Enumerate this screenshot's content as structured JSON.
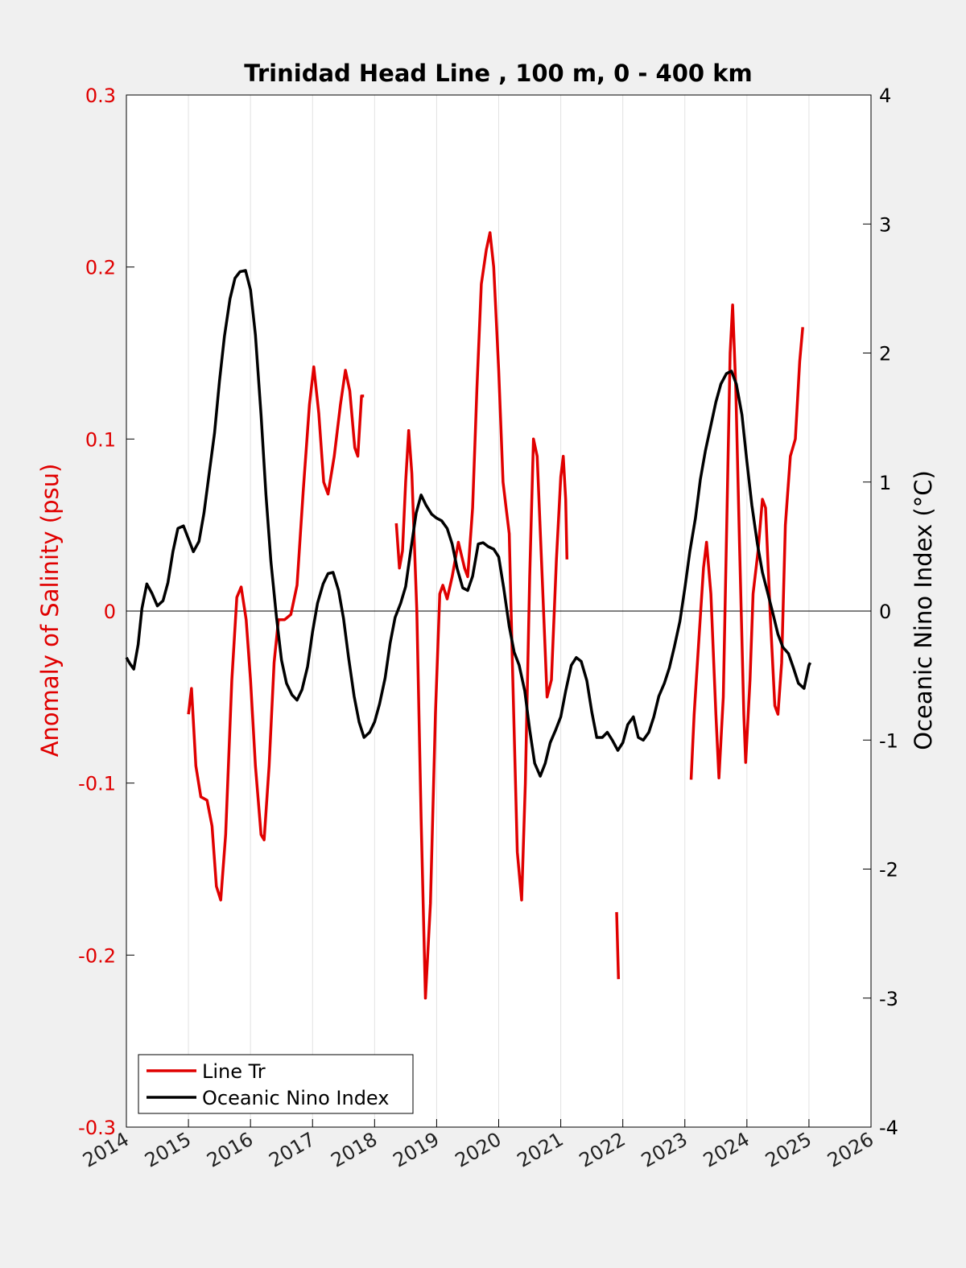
{
  "chart_data": {
    "type": "line",
    "title": "Trinidad Head Line , 100 m, 0 - 400 km",
    "ylabel_left": "Anomaly of Salinity (psu)",
    "ylabel_right": "Oceanic Nino Index (°C)",
    "xlim": [
      2014,
      2026
    ],
    "ylim_left": [
      -0.3,
      0.3
    ],
    "ylim_right": [
      -4,
      4
    ],
    "x_ticks": [
      "2014",
      "2015",
      "2016",
      "2017",
      "2018",
      "2019",
      "2020",
      "2021",
      "2022",
      "2023",
      "2024",
      "2025",
      "2026"
    ],
    "y_ticks_left": [
      "0.3",
      "0.2",
      "0.1",
      "0",
      "-0.1",
      "-0.2",
      "-0.3"
    ],
    "y_ticks_right": [
      "4",
      "3",
      "2",
      "1",
      "0",
      "-1",
      "-2",
      "-3",
      "-4"
    ],
    "grid": "vertical",
    "legend_position": "bottom-left",
    "colors": {
      "line_tr": "#e00000",
      "oni": "#000000",
      "zero_line": "#000000",
      "grid": "#e2e2e2"
    },
    "series": [
      {
        "name": "Line Tr",
        "axis": "left",
        "color": "#e00000",
        "segments": [
          [
            [
              2015.0,
              -0.06
            ],
            [
              2015.05,
              -0.045
            ],
            [
              2015.12,
              -0.09
            ],
            [
              2015.2,
              -0.108
            ],
            [
              2015.3,
              -0.11
            ],
            [
              2015.38,
              -0.125
            ],
            [
              2015.45,
              -0.16
            ],
            [
              2015.52,
              -0.168
            ],
            [
              2015.6,
              -0.13
            ],
            [
              2015.7,
              -0.04
            ],
            [
              2015.78,
              0.008
            ],
            [
              2015.85,
              0.014
            ],
            [
              2015.93,
              -0.005
            ],
            [
              2016.0,
              -0.04
            ],
            [
              2016.08,
              -0.09
            ],
            [
              2016.17,
              -0.13
            ],
            [
              2016.22,
              -0.133
            ],
            [
              2016.3,
              -0.09
            ],
            [
              2016.38,
              -0.03
            ],
            [
              2016.45,
              -0.005
            ],
            [
              2016.55,
              -0.005
            ],
            [
              2016.65,
              -0.002
            ],
            [
              2016.75,
              0.015
            ],
            [
              2016.85,
              0.07
            ],
            [
              2016.95,
              0.12
            ],
            [
              2017.02,
              0.142
            ],
            [
              2017.1,
              0.115
            ],
            [
              2017.18,
              0.075
            ],
            [
              2017.25,
              0.068
            ],
            [
              2017.35,
              0.09
            ],
            [
              2017.45,
              0.12
            ],
            [
              2017.53,
              0.14
            ],
            [
              2017.6,
              0.128
            ],
            [
              2017.68,
              0.095
            ],
            [
              2017.73,
              0.09
            ],
            [
              2017.79,
              0.125
            ],
            [
              2017.83,
              0.125
            ]
          ],
          [
            [
              2018.35,
              0.051
            ],
            [
              2018.4,
              0.025
            ],
            [
              2018.45,
              0.035
            ],
            [
              2018.5,
              0.075
            ],
            [
              2018.55,
              0.105
            ],
            [
              2018.6,
              0.08
            ],
            [
              2018.68,
              0.0
            ],
            [
              2018.75,
              -0.12
            ],
            [
              2018.82,
              -0.225
            ],
            [
              2018.9,
              -0.17
            ],
            [
              2018.98,
              -0.06
            ],
            [
              2019.05,
              0.01
            ],
            [
              2019.1,
              0.015
            ],
            [
              2019.17,
              0.007
            ],
            [
              2019.25,
              0.02
            ],
            [
              2019.35,
              0.04
            ],
            [
              2019.45,
              0.025
            ],
            [
              2019.5,
              0.02
            ],
            [
              2019.58,
              0.06
            ],
            [
              2019.65,
              0.13
            ],
            [
              2019.72,
              0.19
            ],
            [
              2019.8,
              0.21
            ],
            [
              2019.86,
              0.22
            ],
            [
              2019.92,
              0.2
            ],
            [
              2020.0,
              0.14
            ],
            [
              2020.07,
              0.075
            ],
            [
              2020.12,
              0.06
            ],
            [
              2020.17,
              0.045
            ],
            [
              2020.22,
              -0.03
            ],
            [
              2020.3,
              -0.14
            ],
            [
              2020.37,
              -0.168
            ],
            [
              2020.43,
              -0.1
            ],
            [
              2020.5,
              0.02
            ],
            [
              2020.56,
              0.1
            ],
            [
              2020.62,
              0.09
            ],
            [
              2020.7,
              0.02
            ],
            [
              2020.78,
              -0.05
            ],
            [
              2020.85,
              -0.04
            ],
            [
              2020.93,
              0.03
            ],
            [
              2021.0,
              0.078
            ],
            [
              2021.04,
              0.09
            ],
            [
              2021.08,
              0.065
            ],
            [
              2021.1,
              0.03
            ]
          ],
          [
            [
              2021.9,
              -0.175
            ],
            [
              2021.93,
              -0.214
            ]
          ],
          [
            [
              2023.1,
              -0.098
            ],
            [
              2023.15,
              -0.06
            ],
            [
              2023.22,
              -0.02
            ],
            [
              2023.3,
              0.025
            ],
            [
              2023.35,
              0.04
            ],
            [
              2023.42,
              0.01
            ],
            [
              2023.5,
              -0.06
            ],
            [
              2023.55,
              -0.097
            ],
            [
              2023.62,
              -0.05
            ],
            [
              2023.68,
              0.06
            ],
            [
              2023.73,
              0.15
            ],
            [
              2023.77,
              0.178
            ],
            [
              2023.82,
              0.13
            ],
            [
              2023.88,
              0.04
            ],
            [
              2023.95,
              -0.06
            ],
            [
              2023.98,
              -0.088
            ],
            [
              2024.05,
              -0.04
            ],
            [
              2024.1,
              0.01
            ],
            [
              2024.18,
              0.035
            ],
            [
              2024.25,
              0.065
            ],
            [
              2024.3,
              0.06
            ],
            [
              2024.38,
              -0.005
            ],
            [
              2024.45,
              -0.055
            ],
            [
              2024.5,
              -0.06
            ],
            [
              2024.56,
              -0.03
            ],
            [
              2024.62,
              0.05
            ],
            [
              2024.7,
              0.09
            ],
            [
              2024.78,
              0.1
            ],
            [
              2024.85,
              0.145
            ],
            [
              2024.9,
              0.165
            ]
          ]
        ]
      },
      {
        "name": "Oceanic Nino Index",
        "axis": "right",
        "color": "#000000",
        "points": [
          [
            2014.0,
            -0.36
          ],
          [
            2014.06,
            -0.41
          ],
          [
            2014.12,
            -0.45
          ],
          [
            2014.19,
            -0.26
          ],
          [
            2014.25,
            0.02
          ],
          [
            2014.33,
            0.21
          ],
          [
            2014.41,
            0.14
          ],
          [
            2014.5,
            0.04
          ],
          [
            2014.59,
            0.08
          ],
          [
            2014.67,
            0.22
          ],
          [
            2014.75,
            0.46
          ],
          [
            2014.83,
            0.64
          ],
          [
            2014.92,
            0.66
          ],
          [
            2015.0,
            0.56
          ],
          [
            2015.08,
            0.46
          ],
          [
            2015.17,
            0.54
          ],
          [
            2015.25,
            0.76
          ],
          [
            2015.33,
            1.05
          ],
          [
            2015.42,
            1.38
          ],
          [
            2015.5,
            1.78
          ],
          [
            2015.58,
            2.13
          ],
          [
            2015.67,
            2.42
          ],
          [
            2015.75,
            2.58
          ],
          [
            2015.83,
            2.63
          ],
          [
            2015.92,
            2.64
          ],
          [
            2016.0,
            2.49
          ],
          [
            2016.08,
            2.14
          ],
          [
            2016.17,
            1.52
          ],
          [
            2016.25,
            0.9
          ],
          [
            2016.33,
            0.38
          ],
          [
            2016.42,
            -0.05
          ],
          [
            2016.5,
            -0.38
          ],
          [
            2016.58,
            -0.56
          ],
          [
            2016.67,
            -0.65
          ],
          [
            2016.75,
            -0.69
          ],
          [
            2016.83,
            -0.61
          ],
          [
            2016.92,
            -0.43
          ],
          [
            2017.0,
            -0.16
          ],
          [
            2017.08,
            0.06
          ],
          [
            2017.17,
            0.21
          ],
          [
            2017.25,
            0.29
          ],
          [
            2017.33,
            0.3
          ],
          [
            2017.42,
            0.16
          ],
          [
            2017.5,
            -0.06
          ],
          [
            2017.58,
            -0.36
          ],
          [
            2017.67,
            -0.66
          ],
          [
            2017.75,
            -0.86
          ],
          [
            2017.83,
            -0.98
          ],
          [
            2017.92,
            -0.94
          ],
          [
            2018.0,
            -0.86
          ],
          [
            2018.08,
            -0.72
          ],
          [
            2018.17,
            -0.52
          ],
          [
            2018.25,
            -0.25
          ],
          [
            2018.33,
            -0.05
          ],
          [
            2018.42,
            0.06
          ],
          [
            2018.5,
            0.19
          ],
          [
            2018.58,
            0.46
          ],
          [
            2018.67,
            0.76
          ],
          [
            2018.75,
            0.9
          ],
          [
            2018.83,
            0.82
          ],
          [
            2018.92,
            0.75
          ],
          [
            2019.0,
            0.72
          ],
          [
            2019.08,
            0.7
          ],
          [
            2019.17,
            0.64
          ],
          [
            2019.25,
            0.52
          ],
          [
            2019.33,
            0.33
          ],
          [
            2019.42,
            0.18
          ],
          [
            2019.5,
            0.16
          ],
          [
            2019.58,
            0.27
          ],
          [
            2019.67,
            0.52
          ],
          [
            2019.75,
            0.53
          ],
          [
            2019.83,
            0.5
          ],
          [
            2019.92,
            0.48
          ],
          [
            2020.0,
            0.42
          ],
          [
            2020.08,
            0.18
          ],
          [
            2020.17,
            -0.12
          ],
          [
            2020.25,
            -0.32
          ],
          [
            2020.33,
            -0.42
          ],
          [
            2020.42,
            -0.62
          ],
          [
            2020.5,
            -0.92
          ],
          [
            2020.58,
            -1.18
          ],
          [
            2020.67,
            -1.28
          ],
          [
            2020.75,
            -1.18
          ],
          [
            2020.83,
            -1.02
          ],
          [
            2020.92,
            -0.92
          ],
          [
            2021.0,
            -0.82
          ],
          [
            2021.08,
            -0.62
          ],
          [
            2021.17,
            -0.42
          ],
          [
            2021.25,
            -0.36
          ],
          [
            2021.33,
            -0.39
          ],
          [
            2021.42,
            -0.54
          ],
          [
            2021.5,
            -0.78
          ],
          [
            2021.58,
            -0.98
          ],
          [
            2021.67,
            -0.98
          ],
          [
            2021.75,
            -0.94
          ],
          [
            2021.83,
            -1.0
          ],
          [
            2021.92,
            -1.08
          ],
          [
            2022.0,
            -1.02
          ],
          [
            2022.08,
            -0.88
          ],
          [
            2022.17,
            -0.82
          ],
          [
            2022.25,
            -0.98
          ],
          [
            2022.33,
            -1.0
          ],
          [
            2022.42,
            -0.94
          ],
          [
            2022.5,
            -0.82
          ],
          [
            2022.58,
            -0.66
          ],
          [
            2022.67,
            -0.56
          ],
          [
            2022.75,
            -0.44
          ],
          [
            2022.83,
            -0.28
          ],
          [
            2022.92,
            -0.08
          ],
          [
            2023.0,
            0.18
          ],
          [
            2023.08,
            0.46
          ],
          [
            2023.17,
            0.72
          ],
          [
            2023.25,
            1.02
          ],
          [
            2023.33,
            1.24
          ],
          [
            2023.42,
            1.44
          ],
          [
            2023.5,
            1.62
          ],
          [
            2023.58,
            1.76
          ],
          [
            2023.67,
            1.84
          ],
          [
            2023.75,
            1.86
          ],
          [
            2023.83,
            1.76
          ],
          [
            2023.92,
            1.52
          ],
          [
            2024.0,
            1.16
          ],
          [
            2024.08,
            0.82
          ],
          [
            2024.17,
            0.52
          ],
          [
            2024.25,
            0.3
          ],
          [
            2024.33,
            0.15
          ],
          [
            2024.42,
            -0.02
          ],
          [
            2024.5,
            -0.18
          ],
          [
            2024.58,
            -0.28
          ],
          [
            2024.67,
            -0.33
          ],
          [
            2024.75,
            -0.44
          ],
          [
            2024.83,
            -0.56
          ],
          [
            2024.92,
            -0.6
          ],
          [
            2025.0,
            -0.42
          ],
          [
            2025.02,
            -0.4
          ]
        ]
      }
    ]
  }
}
